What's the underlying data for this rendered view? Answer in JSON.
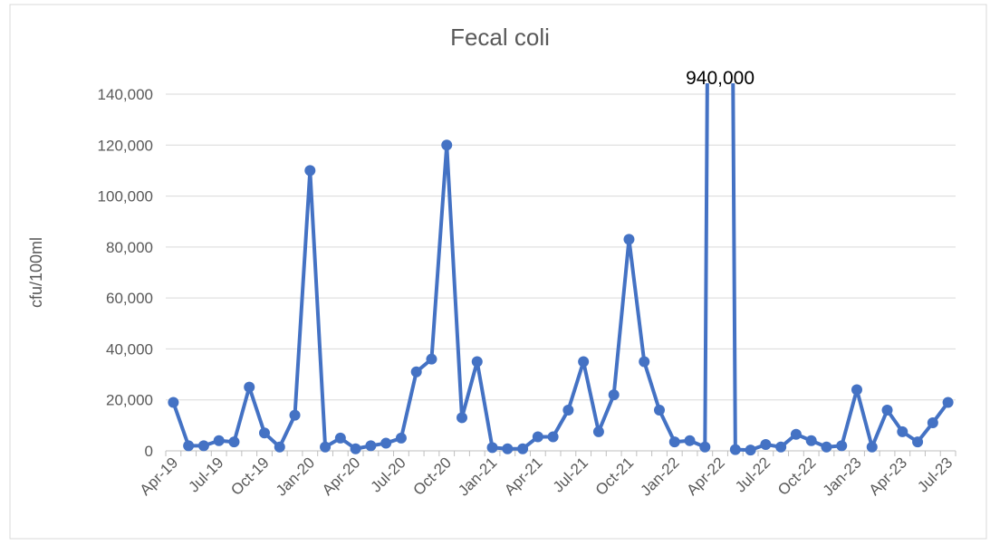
{
  "chart_data": {
    "type": "line",
    "title": "Fecal coli",
    "y_label": "cfu/100ml",
    "categories": [
      "Apr-19",
      null,
      null,
      "Jul-19",
      null,
      null,
      "Oct-19",
      null,
      null,
      "Jan-20",
      null,
      null,
      "Apr-20",
      null,
      null,
      "Jul-20",
      null,
      null,
      "Oct-20",
      null,
      null,
      "Jan-21",
      null,
      null,
      "Apr-21",
      null,
      null,
      "Jul-21",
      null,
      null,
      "Oct-21",
      null,
      null,
      "Jan-22",
      null,
      null,
      "Apr-22",
      null,
      null,
      "Jul-22",
      null,
      null,
      "Oct-22",
      null,
      null,
      "Jan-23",
      null,
      null,
      "Apr-23",
      null,
      null,
      "Jul-23"
    ],
    "series": [
      {
        "name": "Fecal coli",
        "color": "#4472c4",
        "values": [
          19000,
          2000,
          2000,
          4000,
          3500,
          25000,
          7000,
          1500,
          14000,
          110000,
          1500,
          5000,
          800,
          2000,
          3000,
          5000,
          31000,
          36000,
          120000,
          13000,
          35000,
          1300,
          800,
          800,
          5500,
          5500,
          16000,
          35000,
          7500,
          22000,
          83000,
          35000,
          16000,
          3500,
          4000,
          1500,
          940000,
          500,
          300,
          2500,
          1500,
          6500,
          4000,
          1500,
          2000,
          24000,
          1500,
          16000,
          7500,
          3500,
          11000,
          19000
        ],
        "value_labels": [
          null,
          null,
          null,
          null,
          null,
          null,
          null,
          null,
          null,
          null,
          null,
          null,
          null,
          null,
          null,
          null,
          null,
          null,
          null,
          null,
          null,
          null,
          null,
          null,
          null,
          null,
          null,
          null,
          null,
          null,
          null,
          null,
          null,
          null,
          null,
          null,
          "940,000",
          null,
          null,
          null,
          null,
          null,
          null,
          null,
          null,
          null,
          null,
          null,
          null,
          null,
          null,
          null
        ]
      }
    ],
    "ylim": [
      0,
      140000
    ],
    "yticks": [
      {
        "value": 0,
        "label": "0"
      },
      {
        "value": 20000,
        "label": "20,000"
      },
      {
        "value": 40000,
        "label": "40,000"
      },
      {
        "value": 60000,
        "label": "60,000"
      },
      {
        "value": 80000,
        "label": "80,000"
      },
      {
        "value": 100000,
        "label": "100,000"
      },
      {
        "value": 120000,
        "label": "120,000"
      },
      {
        "value": 140000,
        "label": "140,000"
      }
    ],
    "grid": true
  }
}
